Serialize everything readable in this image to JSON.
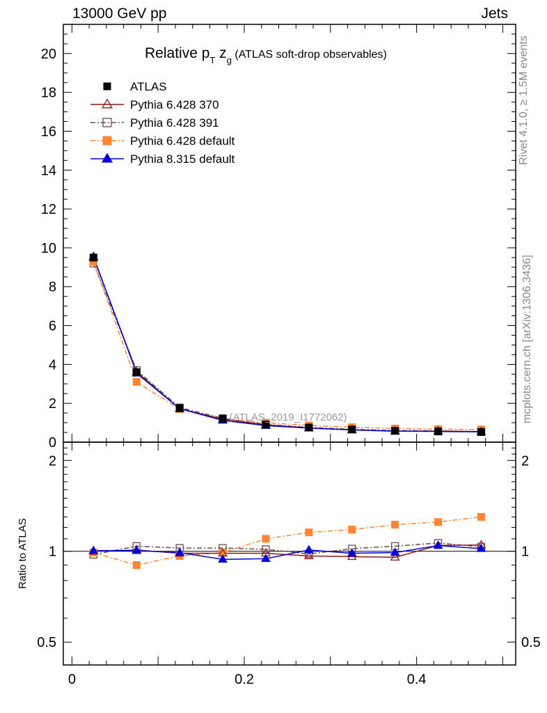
{
  "header": {
    "left": "13000 GeV pp",
    "right": "Jets"
  },
  "side_labels": {
    "rivet": "Rivet 4.1.0, ≥ 1.5M events",
    "mcplots": "mcplots.cern.ch [arXiv:1306.3436]"
  },
  "colors": {
    "atlas": "#000000",
    "p6_370": "#8b1a1a",
    "p6_391": "#6b4a4a",
    "p6_default": "#ff8533",
    "p8_default": "#0000dd"
  },
  "chart_data": {
    "type": "line",
    "title_main": "Relative p",
    "title_sub_t": "T",
    "title_z": " z",
    "title_sub_g": "g",
    "title_paren": " (ATLAS soft-drop observables)",
    "watermark": "(ATLAS_2019_I1772062)",
    "ratio_ylabel": "Ratio to ATLAS",
    "x": [
      0.025,
      0.075,
      0.125,
      0.175,
      0.225,
      0.275,
      0.325,
      0.375,
      0.425,
      0.475
    ],
    "xlim": [
      -0.01,
      0.515
    ],
    "main_ylim": [
      0,
      21.5
    ],
    "main_yticks": [
      0,
      2,
      4,
      6,
      8,
      10,
      12,
      14,
      16,
      18,
      20
    ],
    "main_ytick_labels": [
      "0",
      "2",
      "4",
      "6",
      "8",
      "10",
      "12",
      "14",
      "16",
      "18",
      "20"
    ],
    "ratio_ylim": [
      0.42,
      2.3
    ],
    "ratio_yticks": [
      0.5,
      1,
      2
    ],
    "ratio_ytick_labels": [
      "0.5",
      "1",
      "2"
    ],
    "xticks": [
      0,
      0.2,
      0.4
    ],
    "xtick_labels": [
      "0",
      "0.2",
      "0.4"
    ],
    "series": [
      {
        "key": "atlas",
        "name": "ATLAS",
        "marker": "square-filled",
        "dash": "none",
        "line": false,
        "values": [
          9.5,
          3.6,
          1.75,
          1.2,
          0.9,
          0.75,
          0.65,
          0.58,
          0.55,
          0.52
        ],
        "ratio": [
          1,
          1,
          1,
          1,
          1,
          1,
          1,
          1,
          1,
          1
        ]
      },
      {
        "key": "p6_370",
        "name": "Pythia 6.428 370",
        "marker": "triangle-open",
        "dash": "none",
        "line": true,
        "values": [
          9.5,
          3.62,
          1.72,
          1.18,
          0.89,
          0.73,
          0.63,
          0.56,
          0.57,
          0.54
        ],
        "ratio": [
          1.0,
          1.01,
          0.985,
          0.985,
          0.985,
          0.965,
          0.96,
          0.955,
          1.045,
          1.05
        ]
      },
      {
        "key": "p6_391",
        "name": "Pythia 6.428 391",
        "marker": "square-open",
        "dash": "7,3,2,3",
        "line": true,
        "values": [
          9.2,
          3.7,
          1.78,
          1.23,
          0.91,
          0.76,
          0.66,
          0.6,
          0.58,
          0.54
        ],
        "ratio": [
          0.975,
          1.04,
          1.025,
          1.025,
          1.015,
          0.98,
          1.02,
          1.04,
          1.065,
          1.035
        ]
      },
      {
        "key": "p6_default",
        "name": "Pythia 6.428 default",
        "marker": "square-filled",
        "dash": "7,3,2,3",
        "line": true,
        "values": [
          9.3,
          3.1,
          1.7,
          1.2,
          1.0,
          0.86,
          0.77,
          0.7,
          0.67,
          0.65
        ],
        "ratio": [
          0.99,
          0.9,
          0.965,
          0.99,
          1.1,
          1.155,
          1.18,
          1.225,
          1.25,
          1.3
        ]
      },
      {
        "key": "p8_default",
        "name": "Pythia 8.315 default",
        "marker": "triangle-filled",
        "dash": "none",
        "line": true,
        "values": [
          9.55,
          3.55,
          1.72,
          1.12,
          0.85,
          0.72,
          0.63,
          0.57,
          0.55,
          0.53
        ],
        "ratio": [
          1.005,
          1.005,
          0.99,
          0.94,
          0.945,
          1.01,
          0.985,
          0.99,
          1.045,
          1.02
        ]
      }
    ]
  }
}
